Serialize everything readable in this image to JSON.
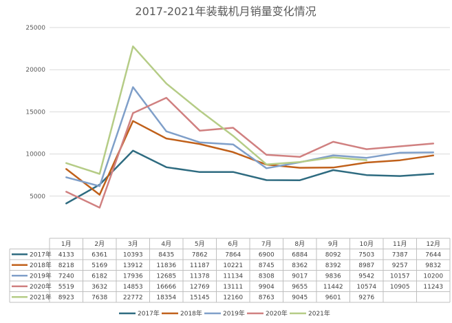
{
  "chart_data": {
    "type": "line",
    "title": "2017-2021年装载机月销量变化情况",
    "xlabel": "",
    "ylabel": "",
    "categories": [
      "1月",
      "2月",
      "3月",
      "4月",
      "5月",
      "6月",
      "7月",
      "8月",
      "9月",
      "10月",
      "11月",
      "12月"
    ],
    "ylim": [
      0,
      25000
    ],
    "yticks": [
      0,
      5000,
      10000,
      15000,
      20000,
      25000
    ],
    "ytick_labels": [
      "",
      "5000",
      "10000",
      "15000",
      "20000",
      "25000"
    ],
    "grid": true,
    "legend_position": "bottom",
    "series": [
      {
        "name": "2017年",
        "color": "#2e6b80",
        "values": [
          4133,
          6361,
          10393,
          8435,
          7862,
          7864,
          6900,
          6884,
          8092,
          7503,
          7387,
          7644
        ]
      },
      {
        "name": "2018年",
        "color": "#c0601a",
        "values": [
          8218,
          5169,
          13912,
          11836,
          11187,
          10221,
          8745,
          8362,
          8392,
          8987,
          9257,
          9832
        ]
      },
      {
        "name": "2019年",
        "color": "#7f9fc9",
        "values": [
          7240,
          6182,
          17936,
          12685,
          11378,
          11134,
          8308,
          9017,
          9836,
          9542,
          10157,
          10200
        ]
      },
      {
        "name": "2020年",
        "color": "#d08080",
        "values": [
          5519,
          3632,
          14853,
          16666,
          12769,
          13111,
          9904,
          9655,
          11442,
          10574,
          10905,
          11243
        ]
      },
      {
        "name": "2021年",
        "color": "#b5cc86",
        "values": [
          8923,
          7638,
          22772,
          18354,
          15145,
          12160,
          8763,
          9045,
          9601,
          9276,
          null,
          null
        ]
      }
    ]
  }
}
